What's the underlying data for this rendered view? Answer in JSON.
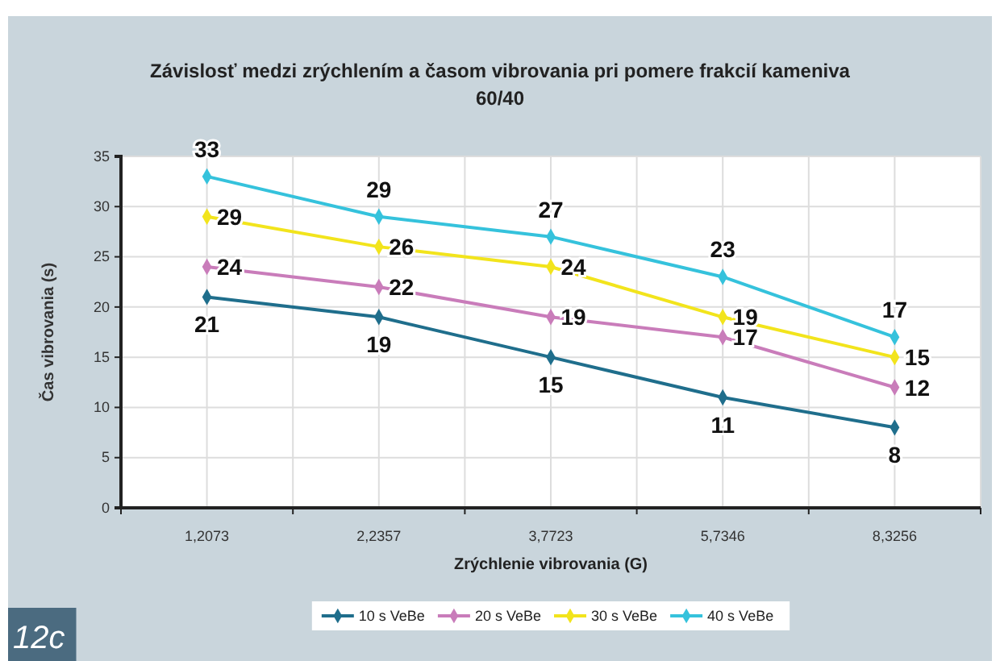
{
  "chart_data": {
    "type": "line",
    "title": "Závislosť medzi zrýchlením a časom vibrovania  pri pomere frakcií kameniva 60/40",
    "xlabel": "Zrýchlenie vibrovania (G)",
    "ylabel": "Čas vibrovania (s)",
    "categories": [
      "1,2073",
      "2,2357",
      "3,7723",
      "5,7346",
      "8,3256"
    ],
    "series": [
      {
        "name": "10 s VeBe",
        "color": "#1f6e8c",
        "values": [
          21,
          19,
          15,
          11,
          8
        ]
      },
      {
        "name": "20 s VeBe",
        "color": "#c97cba",
        "values": [
          24,
          22,
          19,
          17,
          12
        ]
      },
      {
        "name": "30 s VeBe",
        "color": "#f2e41c",
        "values": [
          29,
          26,
          24,
          19,
          15
        ]
      },
      {
        "name": "40 s VeBe",
        "color": "#35c2dc",
        "values": [
          33,
          29,
          27,
          23,
          17
        ]
      }
    ],
    "ylim": [
      0,
      35
    ],
    "yticks": [
      0,
      5,
      10,
      15,
      20,
      25,
      30,
      35
    ],
    "grid": true,
    "legend": "bottom",
    "marker": "diamond",
    "data_labels": true,
    "annotations": [
      "12c"
    ]
  }
}
